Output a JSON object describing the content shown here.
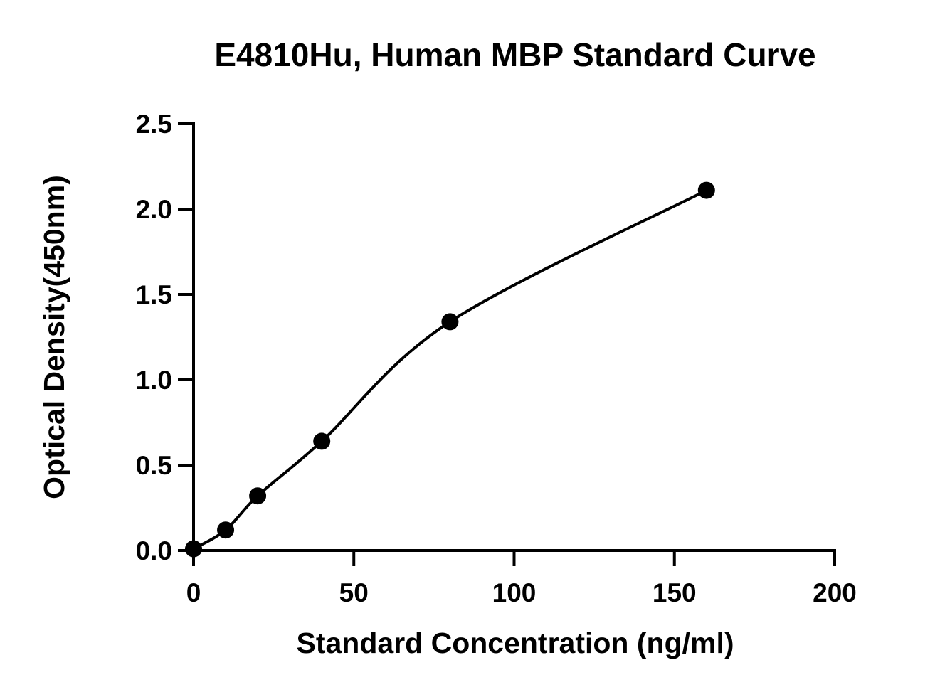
{
  "chart_data": {
    "type": "scatter",
    "title": "E4810Hu, Human MBP Standard Curve",
    "xlabel": "Standard Concentration (ng/ml)",
    "ylabel": "Optical Density(450nm)",
    "xlim": [
      0,
      200
    ],
    "ylim": [
      0,
      2.5
    ],
    "x_ticks": [
      0,
      50,
      100,
      150,
      200
    ],
    "x_tick_labels": [
      "0",
      "50",
      "100",
      "150",
      "200"
    ],
    "y_ticks": [
      0,
      0.5,
      1.0,
      1.5,
      2.0,
      2.5
    ],
    "y_tick_labels": [
      "0.0",
      "0.5",
      "1.0",
      "1.5",
      "2.0",
      "2.5"
    ],
    "grid": false,
    "fit_curve": true,
    "series": [
      {
        "x": [
          0,
          10,
          20,
          40,
          80,
          160
        ],
        "y": [
          0.01,
          0.12,
          0.32,
          0.64,
          1.34,
          2.11
        ]
      }
    ],
    "colors": {
      "points": "#000000",
      "curve": "#000000",
      "axes": "#000000"
    }
  }
}
